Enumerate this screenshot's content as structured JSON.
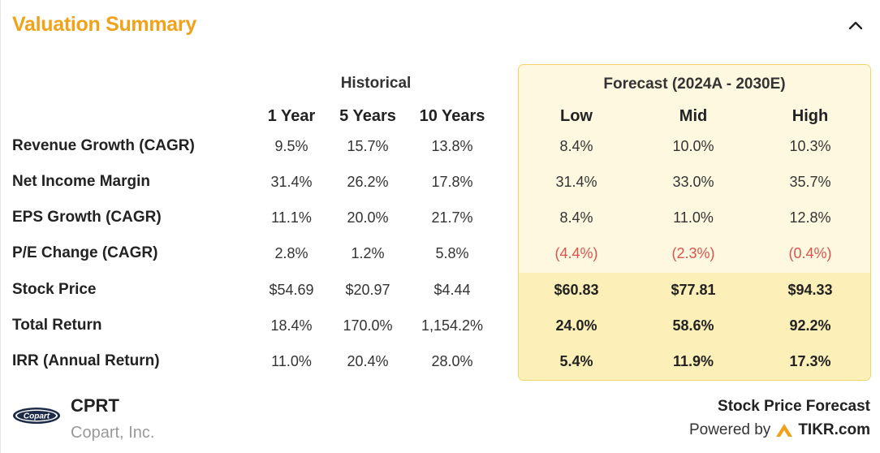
{
  "header": {
    "title": "Valuation Summary"
  },
  "groups": {
    "historical": "Historical",
    "forecast": "Forecast (2024A - 2030E)"
  },
  "columns": [
    "1 Year",
    "5 Years",
    "10 Years",
    "Low",
    "Mid",
    "High"
  ],
  "rows": [
    {
      "label": "Revenue Growth (CAGR)",
      "values": [
        "9.5%",
        "15.7%",
        "13.8%",
        "8.4%",
        "10.0%",
        "10.3%"
      ]
    },
    {
      "label": "Net Income Margin",
      "values": [
        "31.4%",
        "26.2%",
        "17.8%",
        "31.4%",
        "33.0%",
        "35.7%"
      ]
    },
    {
      "label": "EPS Growth (CAGR)",
      "values": [
        "11.1%",
        "20.0%",
        "21.7%",
        "8.4%",
        "11.0%",
        "12.8%"
      ]
    },
    {
      "label": "P/E Change (CAGR)",
      "values": [
        "2.8%",
        "1.2%",
        "5.8%",
        "(4.4%)",
        "(2.3%)",
        "(0.4%)"
      ]
    },
    {
      "label": "Stock Price",
      "values": [
        "$54.69",
        "$20.97",
        "$4.44",
        "$60.83",
        "$77.81",
        "$94.33"
      ]
    },
    {
      "label": "Total Return",
      "values": [
        "18.4%",
        "170.0%",
        "1,154.2%",
        "24.0%",
        "58.6%",
        "92.2%"
      ]
    },
    {
      "label": "IRR (Annual Return)",
      "values": [
        "11.0%",
        "20.4%",
        "28.0%",
        "5.4%",
        "11.9%",
        "17.3%"
      ]
    }
  ],
  "company": {
    "logo_text": "Copart",
    "ticker": "CPRT",
    "name": "Copart, Inc."
  },
  "footer": {
    "forecast_label": "Stock Price Forecast",
    "powered_by": "Powered by",
    "brand": "TIKR.com"
  },
  "colors": {
    "accent": "#f0a21b",
    "negative": "#d9534f",
    "forecast_bg": "#fef8e0",
    "forecast_bg_dark": "#fcefb8"
  }
}
